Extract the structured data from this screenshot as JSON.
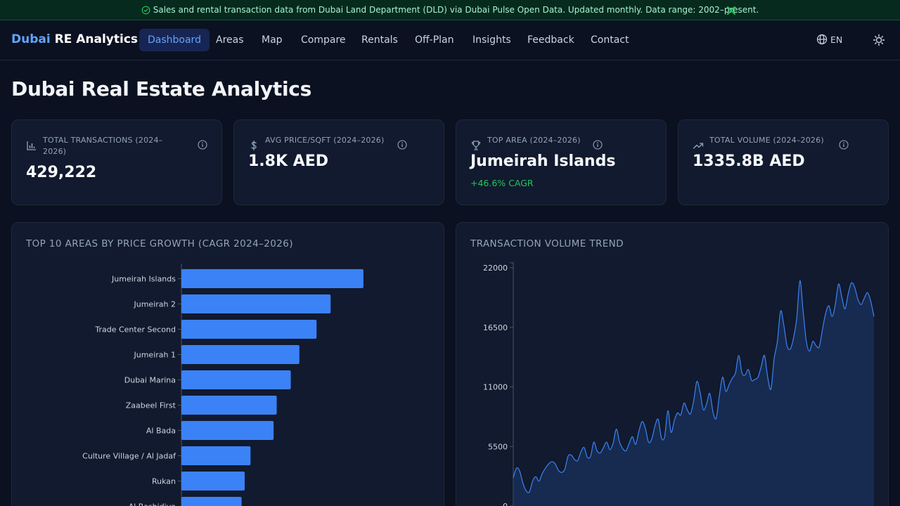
{
  "banner": {
    "text": "Sales and rental transaction data from Dubai Land Department (DLD) via Dubai Pulse Open Data. Updated monthly. Data range: 2002–present.",
    "colors": {
      "bg": "#072a1e",
      "text": "#a7f3d0",
      "icon": "#22c55e"
    }
  },
  "nav": {
    "brand_part1": "Dubai",
    "brand_part2": " RE Analytics",
    "items": [
      {
        "label": "Dashboard",
        "active": true
      },
      {
        "label": "Areas"
      },
      {
        "label": "Map"
      },
      {
        "label": "Compare"
      },
      {
        "label": "Rentals"
      },
      {
        "label": "Off-Plan"
      },
      {
        "label": "Insights"
      },
      {
        "label": "Feedback"
      },
      {
        "label": "Contact"
      }
    ],
    "language": "EN"
  },
  "page": {
    "title": "Dubai Real Estate Analytics"
  },
  "kpis": [
    {
      "icon": "bar-chart-icon",
      "label": "Total Transactions (2024–2026)",
      "value": "429,222"
    },
    {
      "icon": "dollar-icon",
      "label": "Avg Price/SQFT (2024–2026)",
      "value": "1.8K AED"
    },
    {
      "icon": "trophy-icon",
      "label": "Top Area (2024–2026)",
      "value": "Jumeirah Islands",
      "sub": "+46.6% CAGR"
    },
    {
      "icon": "trending-up-icon",
      "label": "Total Volume (2024–2026)",
      "value": "1335.8B AED"
    }
  ],
  "growth_panel": {
    "title": "Top 10 Areas by Price Growth (CAGR 2024–2026)"
  },
  "volume_panel": {
    "title": "Transaction Volume Trend"
  },
  "colors": {
    "accent": "#3b82f6",
    "accent_light": "#60a5fa",
    "positive": "#22c55e",
    "card_bg": "#111a2e",
    "page_bg": "#0b1120"
  },
  "chart_data": [
    {
      "type": "bar",
      "orientation": "horizontal",
      "title": "Top 10 Areas by Price Growth (CAGR 2024–2026)",
      "categories": [
        "Jumeirah Islands",
        "Jumeirah 2",
        "Trade Center Second",
        "Jumeirah 1",
        "Dubai Marina",
        "Zaabeel First",
        "Al Bada",
        "Culture Village / Al Jadaf",
        "Rukan",
        "Al Rashidiya"
      ],
      "values": [
        46.6,
        38.2,
        34.6,
        30.2,
        28.0,
        24.4,
        23.6,
        17.7,
        16.2,
        15.4
      ],
      "xlim": [
        0,
        81
      ],
      "color": "#3b82f6"
    },
    {
      "type": "area",
      "title": "Transaction Volume Trend",
      "ylim": [
        0,
        22000
      ],
      "yticks": [
        0,
        5500,
        11000,
        16500,
        22000
      ],
      "values": [
        2600,
        3500,
        3200,
        2100,
        1400,
        1300,
        2300,
        2700,
        2300,
        3000,
        3500,
        3900,
        4100,
        3900,
        3300,
        3100,
        3400,
        4600,
        4700,
        4300,
        4200,
        5000,
        5400,
        4500,
        4600,
        5900,
        5100,
        4900,
        5400,
        5900,
        5200,
        5800,
        7100,
        5900,
        5300,
        5100,
        5800,
        6400,
        5700,
        6900,
        7800,
        7200,
        5900,
        6200,
        7400,
        8000,
        6300,
        6400,
        8800,
        6800,
        7900,
        8600,
        8400,
        9500,
        8900,
        8500,
        9700,
        11500,
        10500,
        8900,
        9400,
        10400,
        8700,
        8100,
        10200,
        11900,
        10600,
        11200,
        11800,
        12300,
        13900,
        12300,
        12100,
        12600,
        11600,
        11700,
        11900,
        12900,
        13900,
        11900,
        10800,
        13600,
        15200,
        18000,
        16700,
        14800,
        14500,
        15500,
        17300,
        20800,
        18000,
        15200,
        14300,
        15200,
        14800,
        14700,
        16300,
        17800,
        18500,
        17500,
        18600,
        20500,
        19300,
        18200,
        19600,
        20600,
        20200,
        19100,
        18600,
        19200,
        19700,
        18900,
        17500
      ]
    }
  ]
}
